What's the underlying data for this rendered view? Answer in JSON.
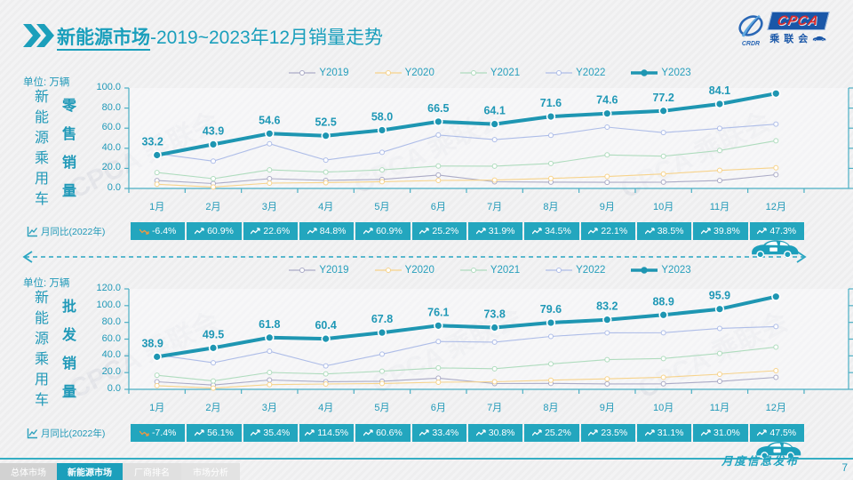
{
  "meta": {
    "page_number": "7",
    "ribbon_text": "月度信息发布",
    "watermark": "CPCA 乘联会"
  },
  "header": {
    "title_bold": "新能源市场",
    "title_rest": "-2019~2023年12月销量走势",
    "logo": {
      "cpca": "CPCA",
      "org": "乘联会",
      "emblem_sub": "CRDR"
    }
  },
  "colors": {
    "teal": "#1c9fbb",
    "yoy_cell_bg": "#23a6be",
    "label": "#1f98b6",
    "y2019": "#ababc6",
    "y2020": "#f7d38b",
    "y2021": "#afdcbe",
    "y2022": "#aebde8",
    "y2023": "#1e96b2",
    "negative_icon": "#f2973f"
  },
  "footer": {
    "tabs": [
      {
        "label": "总体市场",
        "active": false
      },
      {
        "label": "新能源市场",
        "active": true
      },
      {
        "label": "厂商排名",
        "active": false
      },
      {
        "label": "市场分析",
        "active": false
      }
    ]
  },
  "chart_data": [
    {
      "type": "line",
      "title": "新能源乘用车零售销量",
      "unit_label": "单位: 万辆",
      "group_label": "新能源乘用车",
      "measure_label": "零售销量",
      "categories": [
        "1月",
        "2月",
        "3月",
        "4月",
        "5月",
        "6月",
        "7月",
        "8月",
        "9月",
        "10月",
        "11月",
        "12月"
      ],
      "ylim": [
        0,
        100
      ],
      "yticks": [
        "100.0",
        "80.0",
        "60.0",
        "40.0",
        "20.0",
        "0.0"
      ],
      "legend_position": "top",
      "grid": false,
      "series": [
        {
          "name": "Y2019",
          "color": "#ababc6",
          "values": [
            7.9,
            4.9,
            9.7,
            8.0,
            9.0,
            13.4,
            6.6,
            6.3,
            6.1,
            6.3,
            7.9,
            13.7
          ]
        },
        {
          "name": "Y2020",
          "color": "#f7d38b",
          "values": [
            4.2,
            1.4,
            5.3,
            5.8,
            6.7,
            8.0,
            8.3,
            10.0,
            11.9,
            14.4,
            18.0,
            20.6
          ]
        },
        {
          "name": "Y2021",
          "color": "#afdcbe",
          "values": [
            15.8,
            9.7,
            18.5,
            16.3,
            18.5,
            22.3,
            22.2,
            24.9,
            33.4,
            32.1,
            37.8,
            47.5
          ]
        },
        {
          "name": "Y2022",
          "color": "#aebde8",
          "values": [
            34.7,
            27.2,
            44.5,
            28.2,
            36.0,
            53.2,
            48.6,
            52.9,
            61.1,
            55.6,
            59.8,
            64.0
          ]
        },
        {
          "name": "Y2023",
          "color": "#1e96b2",
          "values": [
            33.2,
            43.9,
            54.6,
            52.5,
            58.0,
            66.5,
            64.1,
            71.6,
            74.6,
            77.2,
            84.1,
            94.5
          ],
          "emphasis": true,
          "show_labels": true,
          "last_label_boxed": true
        }
      ],
      "yoy": {
        "label": "月同比(2022年)",
        "values": [
          "-6.4%",
          "60.9%",
          "22.6%",
          "84.8%",
          "60.9%",
          "25.2%",
          "31.9%",
          "34.5%",
          "22.1%",
          "38.5%",
          "39.8%",
          "47.3%"
        ]
      }
    },
    {
      "type": "line",
      "title": "新能源乘用车批发销量",
      "unit_label": "单位: 万辆",
      "group_label": "新能源乘用车",
      "measure_label": "批发销量",
      "categories": [
        "1月",
        "2月",
        "3月",
        "4月",
        "5月",
        "6月",
        "7月",
        "8月",
        "9月",
        "10月",
        "11月",
        "12月"
      ],
      "ylim": [
        0,
        120
      ],
      "yticks": [
        "120.0",
        "100.0",
        "80.0",
        "60.0",
        "40.0",
        "20.0",
        "0.0"
      ],
      "legend_position": "top",
      "grid": false,
      "series": [
        {
          "name": "Y2019",
          "color": "#ababc6",
          "values": [
            9.0,
            5.1,
            11.1,
            9.1,
            9.7,
            13.4,
            6.9,
            7.1,
            6.5,
            6.6,
            9.5,
            14.3
          ]
        },
        {
          "name": "Y2020",
          "color": "#f7d38b",
          "values": [
            4.4,
            1.5,
            5.6,
            6.4,
            7.0,
            8.5,
            9.0,
            10.9,
            12.5,
            14.4,
            18.0,
            22.3
          ]
        },
        {
          "name": "Y2021",
          "color": "#afdcbe",
          "values": [
            16.8,
            10.0,
            20.2,
            18.4,
            21.7,
            25.6,
            24.6,
            30.4,
            35.5,
            36.8,
            42.9,
            50.5
          ]
        },
        {
          "name": "Y2022",
          "color": "#aebde8",
          "values": [
            41.2,
            31.7,
            45.5,
            28.0,
            42.1,
            57.1,
            56.4,
            63.2,
            67.5,
            67.6,
            72.8,
            75.0
          ]
        },
        {
          "name": "Y2023",
          "color": "#1e96b2",
          "values": [
            38.9,
            49.5,
            61.8,
            60.4,
            67.8,
            76.1,
            73.8,
            79.6,
            83.2,
            88.9,
            95.9,
            110.8
          ],
          "emphasis": true,
          "show_labels": true,
          "last_label_boxed": true
        }
      ],
      "yoy": {
        "label": "月同比(2022年)",
        "values": [
          "-7.4%",
          "56.1%",
          "35.4%",
          "114.5%",
          "60.6%",
          "33.4%",
          "30.8%",
          "25.2%",
          "23.5%",
          "31.1%",
          "31.0%",
          "47.5%"
        ]
      }
    }
  ]
}
